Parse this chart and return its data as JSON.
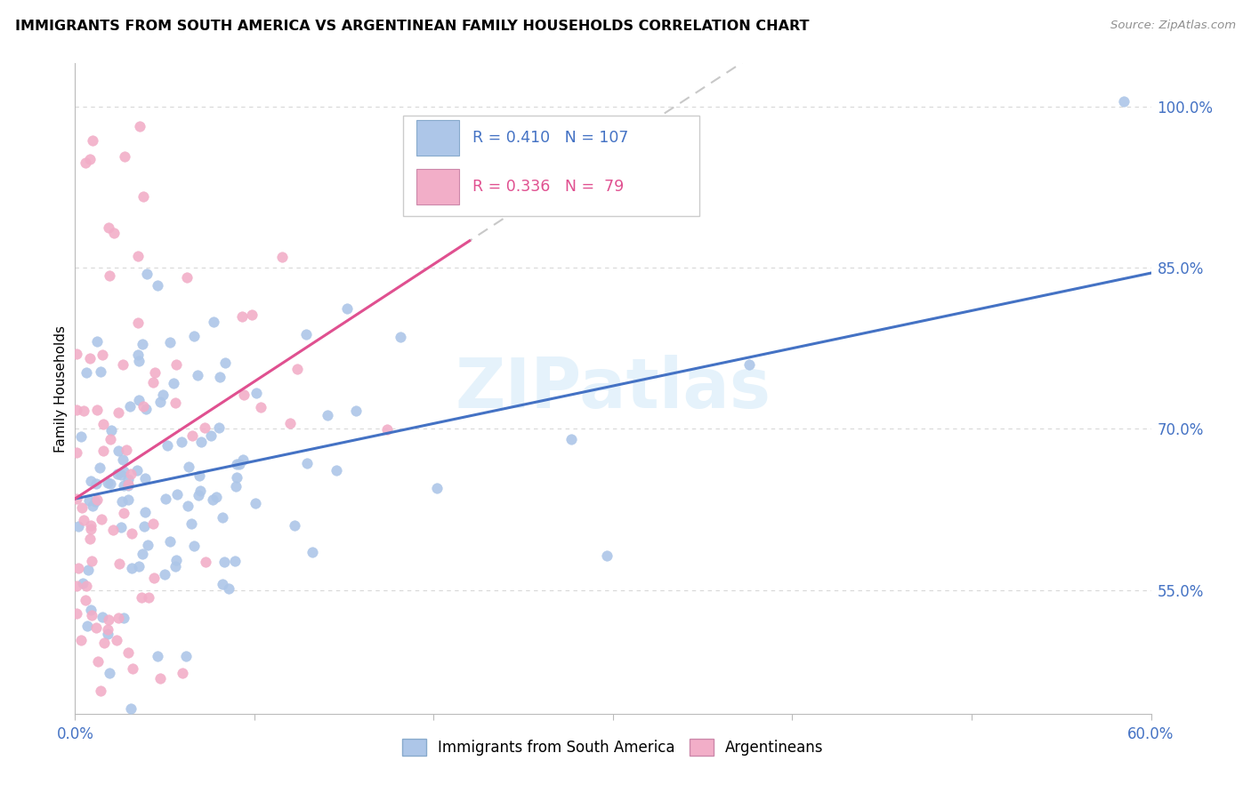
{
  "title": "IMMIGRANTS FROM SOUTH AMERICA VS ARGENTINEAN FAMILY HOUSEHOLDS CORRELATION CHART",
  "source": "Source: ZipAtlas.com",
  "ylabel": "Family Households",
  "yticks": [
    "55.0%",
    "70.0%",
    "85.0%",
    "100.0%"
  ],
  "ytick_vals": [
    0.55,
    0.7,
    0.85,
    1.0
  ],
  "xmin": 0.0,
  "xmax": 0.6,
  "ymin": 0.435,
  "ymax": 1.04,
  "legend1_r": "0.410",
  "legend1_n": "107",
  "legend2_r": "0.336",
  "legend2_n": "79",
  "color_blue": "#adc6e8",
  "color_pink": "#f2aec8",
  "line_blue": "#4472c4",
  "line_pink": "#e05090",
  "line_dash_color": "#c8c8c8",
  "text_blue": "#4472c4",
  "text_pink": "#e05090",
  "watermark": "ZIPatlas",
  "watermark_color": "#d0e8f8",
  "grid_color": "#d8d8d8",
  "tick_color": "#4472c4"
}
